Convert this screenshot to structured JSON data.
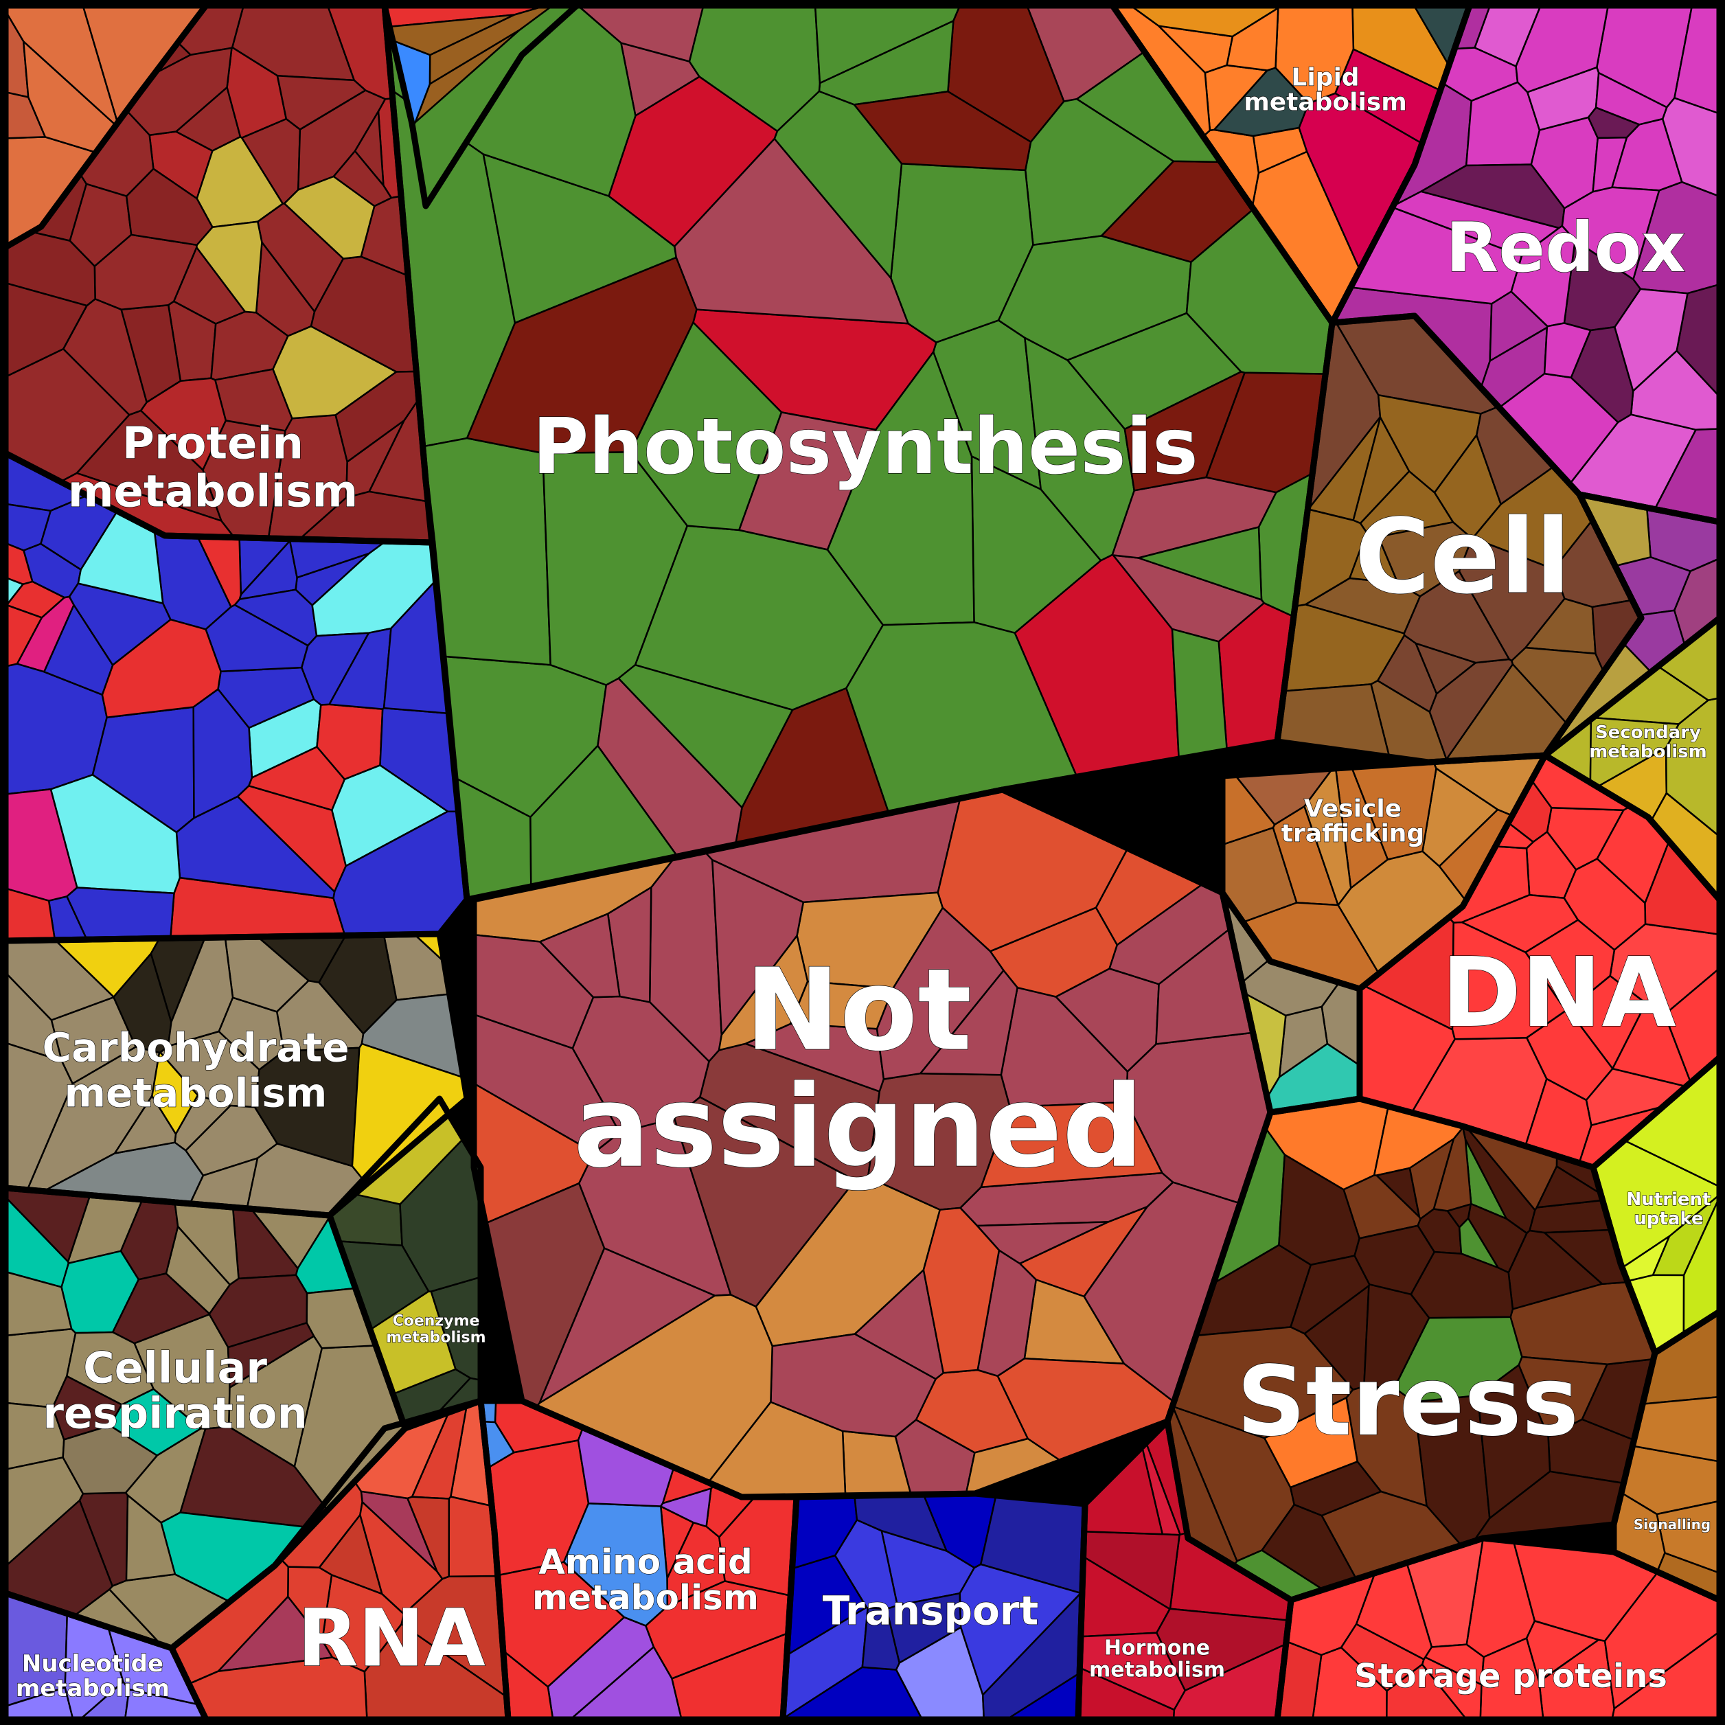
{
  "title": "",
  "categories": [
    {
      "key": "photosynthesis",
      "label_lines": [
        "Photosynthesis"
      ],
      "colors": [
        "#4e9231",
        "#a94658",
        "#7b1a0f",
        "#d0102c"
      ]
    },
    {
      "key": "not-assigned",
      "label_lines": [
        "Not",
        "assigned"
      ],
      "colors": [
        "#a94658",
        "#d48a40",
        "#e05030",
        "#8a3a3a"
      ]
    },
    {
      "key": "protein-metabolism",
      "label_lines": [
        "Protein",
        "metabolism"
      ],
      "colors": [
        "#962a2a",
        "#8a2424",
        "#b5282a",
        "#c9b440"
      ]
    },
    {
      "key": "lipid-metabolism",
      "label_lines": [
        "Lipid",
        "metabolism"
      ],
      "colors": [
        "#ff7f2a",
        "#d6004f",
        "#e8901a",
        "#2f4a4a"
      ]
    },
    {
      "key": "redox",
      "label_lines": [
        "Redox"
      ],
      "colors": [
        "#d93cc0",
        "#e05ad0",
        "#6a1a55",
        "#b02fa0"
      ]
    },
    {
      "key": "cell",
      "label_lines": [
        "Cell"
      ],
      "colors": [
        "#7a4530",
        "#95651f",
        "#8a5a2a",
        "#6b3325"
      ]
    },
    {
      "key": "secondary-metabolism",
      "label_lines": [
        "Secondary",
        "metabolism"
      ],
      "colors": [
        "#b8b82a",
        "#a8a830",
        "#e0b020",
        "#c8c030"
      ]
    },
    {
      "key": "vesicle-trafficking",
      "label_lines": [
        "Vesicle",
        "trafficking"
      ],
      "colors": [
        "#c8702a",
        "#d08a3a",
        "#b06a30",
        "#a8603a"
      ]
    },
    {
      "key": "dna",
      "label_lines": [
        "DNA"
      ],
      "colors": [
        "#ff3a3a",
        "#f03030",
        "#ff4444",
        "#e83535"
      ]
    },
    {
      "key": "nutrient-uptake",
      "label_lines": [
        "Nutrient",
        "uptake"
      ],
      "colors": [
        "#d4f020",
        "#c8e818",
        "#e0f830",
        "#bcd818"
      ]
    },
    {
      "key": "stress",
      "label_lines": [
        "Stress"
      ],
      "colors": [
        "#4a1a0d",
        "#7a3a1a",
        "#ff7a2a",
        "#4e9231"
      ]
    },
    {
      "key": "signalling",
      "label_lines": [
        "Signalling"
      ],
      "colors": [
        "#c87a2a",
        "#b06a20",
        "#a05a20",
        "#d0882a"
      ]
    },
    {
      "key": "storage-proteins",
      "label_lines": [
        "Storage proteins"
      ],
      "colors": [
        "#ff3a3a",
        "#f53535",
        "#ff4a4a",
        "#e83030"
      ]
    },
    {
      "key": "hormone-metabolism",
      "label_lines": [
        "Hormone",
        "metabolism"
      ],
      "colors": [
        "#c8102c",
        "#d81a3a",
        "#b0102a",
        "#e03a80"
      ]
    },
    {
      "key": "transport",
      "label_lines": [
        "Transport"
      ],
      "colors": [
        "#3a3ae0",
        "#0000c0",
        "#8a8aff",
        "#2020a0"
      ]
    },
    {
      "key": "amino-acid-metabolism",
      "label_lines": [
        "Amino acid",
        "metabolism"
      ],
      "colors": [
        "#f03030",
        "#e82828",
        "#a050e0",
        "#4a90f0"
      ]
    },
    {
      "key": "rna",
      "label_lines": [
        "RNA"
      ],
      "colors": [
        "#e04030",
        "#c83a2a",
        "#a83a5a",
        "#f05a40"
      ]
    },
    {
      "key": "nucleotide-metabolism",
      "label_lines": [
        "Nucleotide",
        "metabolism"
      ],
      "colors": [
        "#8a7aff",
        "#7a6aef",
        "#9a8aff",
        "#6a5adf"
      ]
    },
    {
      "key": "cellular-respiration",
      "label_lines": [
        "Cellular",
        "respiration"
      ],
      "colors": [
        "#9a8a62",
        "#5a2020",
        "#00c8a8",
        "#8a7a5a"
      ]
    },
    {
      "key": "coenzyme-metabolism",
      "label_lines": [
        "Coenzyme",
        "metabolism"
      ],
      "colors": [
        "#2f3f28",
        "#3a4a2a",
        "#c8c028",
        "#2a3a22"
      ]
    },
    {
      "key": "carbohydrate-metabolism",
      "label_lines": [
        "Carbohydrate",
        "metabolism"
      ],
      "colors": [
        "#9a8a6a",
        "#2a2418",
        "#f0d010",
        "#808888"
      ]
    },
    {
      "key": "misc-left",
      "label_lines": [],
      "colors": [
        "#3030d0",
        "#e83030",
        "#70f0f0",
        "#e02080"
      ]
    },
    {
      "key": "misc-top",
      "label_lines": [],
      "colors": [
        "#e83030",
        "#3a8aff",
        "#4e9231",
        "#9a6020"
      ]
    },
    {
      "key": "misc-top-left",
      "label_lines": [],
      "colors": [
        "#e07040",
        "#9a8a6a",
        "#c85a3a",
        "#d08050"
      ]
    },
    {
      "key": "misc-center-right",
      "label_lines": [],
      "colors": [
        "#9a8a6a",
        "#c8c040",
        "#30c8b0",
        "#8a7a5a"
      ]
    },
    {
      "key": "misc-right",
      "label_lines": [],
      "colors": [
        "#b8a040",
        "#9a3aa0",
        "#c8b840",
        "#a04080"
      ]
    }
  ]
}
